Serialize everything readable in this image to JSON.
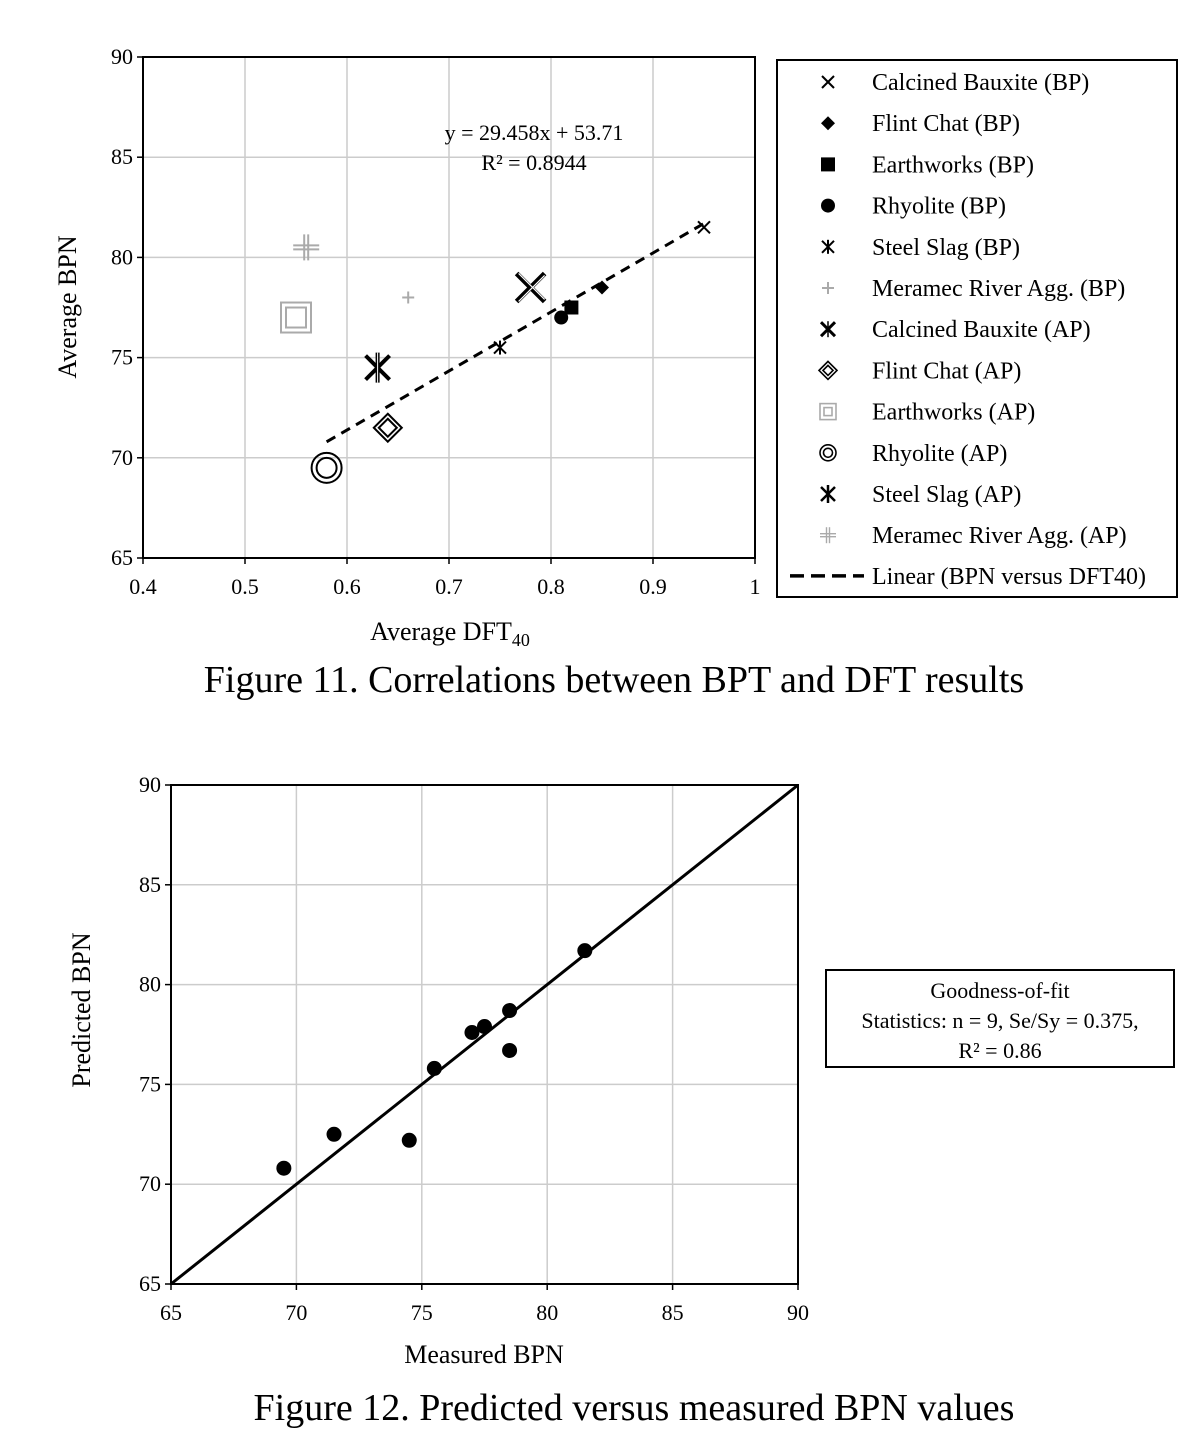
{
  "figures": [
    {
      "caption": "Figure 11. Correlations between BPT and DFT results",
      "annotation": {
        "equation": "y = 29.458x + 53.71",
        "r2": "R² = 0.8944"
      }
    },
    {
      "caption": "Figure 12. Predicted versus measured BPN values",
      "goodness_box": {
        "line1": "Goodness-of-fit",
        "line2": "Statistics: n = 9, Se/Sy = 0.375,",
        "line3": "R² = 0.86"
      }
    }
  ],
  "chart_data": [
    {
      "type": "scatter",
      "xlabel": "Average DFT",
      "xlabel_subscript": "40",
      "ylabel": "Average BPN",
      "xlim": [
        0.4,
        1.0
      ],
      "ylim": [
        65,
        90
      ],
      "xticks": [
        "0.4",
        "0.5",
        "0.6",
        "0.7",
        "0.8",
        "0.9",
        "1"
      ],
      "yticks": [
        "65",
        "70",
        "75",
        "80",
        "85",
        "90"
      ],
      "grid": true,
      "legend_position": "right",
      "series": [
        {
          "name": "Calcined Bauxite (BP)",
          "marker": "x",
          "color": "#000000",
          "points": [
            [
              0.95,
              81.5
            ]
          ]
        },
        {
          "name": "Flint Chat (BP)",
          "marker": "diamond-filled",
          "color": "#000000",
          "points": [
            [
              0.85,
              78.5
            ]
          ]
        },
        {
          "name": "Earthworks (BP)",
          "marker": "square-filled",
          "color": "#000000",
          "points": [
            [
              0.82,
              77.5
            ]
          ]
        },
        {
          "name": "Rhyolite (BP)",
          "marker": "circle-filled",
          "color": "#000000",
          "points": [
            [
              0.81,
              77.0
            ]
          ]
        },
        {
          "name": "Steel Slag (BP)",
          "marker": "star",
          "color": "#000000",
          "points": [
            [
              0.75,
              75.5
            ]
          ]
        },
        {
          "name": "Meramec River Agg. (BP)",
          "marker": "plus",
          "color": "#aaaaaa",
          "points": [
            [
              0.66,
              78.0
            ]
          ]
        },
        {
          "name": "Calcined Bauxite (AP)",
          "marker": "x-large",
          "color": "#000000",
          "points": [
            [
              0.78,
              78.5
            ]
          ]
        },
        {
          "name": "Flint Chat  (AP)",
          "marker": "diamond-double",
          "color": "#000000",
          "points": [
            [
              0.64,
              71.5
            ]
          ]
        },
        {
          "name": "Earthworks  (AP)",
          "marker": "square-double",
          "color": "#aaaaaa",
          "points": [
            [
              0.55,
              77.0
            ]
          ]
        },
        {
          "name": "Rhyolite  (AP)",
          "marker": "circle-double",
          "color": "#000000",
          "points": [
            [
              0.58,
              69.5
            ]
          ]
        },
        {
          "name": "Steel Slag  (AP)",
          "marker": "star-large",
          "color": "#000000",
          "points": [
            [
              0.63,
              74.5
            ]
          ]
        },
        {
          "name": "Meramec River Agg. (AP)",
          "marker": "plus-double",
          "color": "#aaaaaa",
          "points": [
            [
              0.56,
              80.5
            ]
          ]
        }
      ],
      "trendline": {
        "name": "Linear (BPN versus DFT40)",
        "slope": 29.458,
        "intercept": 53.71,
        "x_range": [
          0.58,
          0.95
        ]
      }
    },
    {
      "type": "scatter",
      "xlabel": "Measured BPN",
      "ylabel": "Predicted BPN",
      "xlim": [
        65,
        90
      ],
      "ylim": [
        65,
        90
      ],
      "xticks": [
        "65",
        "70",
        "75",
        "80",
        "85",
        "90"
      ],
      "yticks": [
        "65",
        "70",
        "75",
        "80",
        "85",
        "90"
      ],
      "grid": true,
      "points": [
        [
          69.5,
          70.8
        ],
        [
          71.5,
          72.5
        ],
        [
          74.5,
          72.2
        ],
        [
          75.5,
          75.8
        ],
        [
          77.0,
          77.6
        ],
        [
          77.5,
          77.9
        ],
        [
          78.5,
          78.7
        ],
        [
          78.5,
          76.7
        ],
        [
          81.5,
          81.7
        ]
      ],
      "reference_line": {
        "from": [
          65,
          65
        ],
        "to": [
          90,
          90
        ]
      }
    }
  ]
}
